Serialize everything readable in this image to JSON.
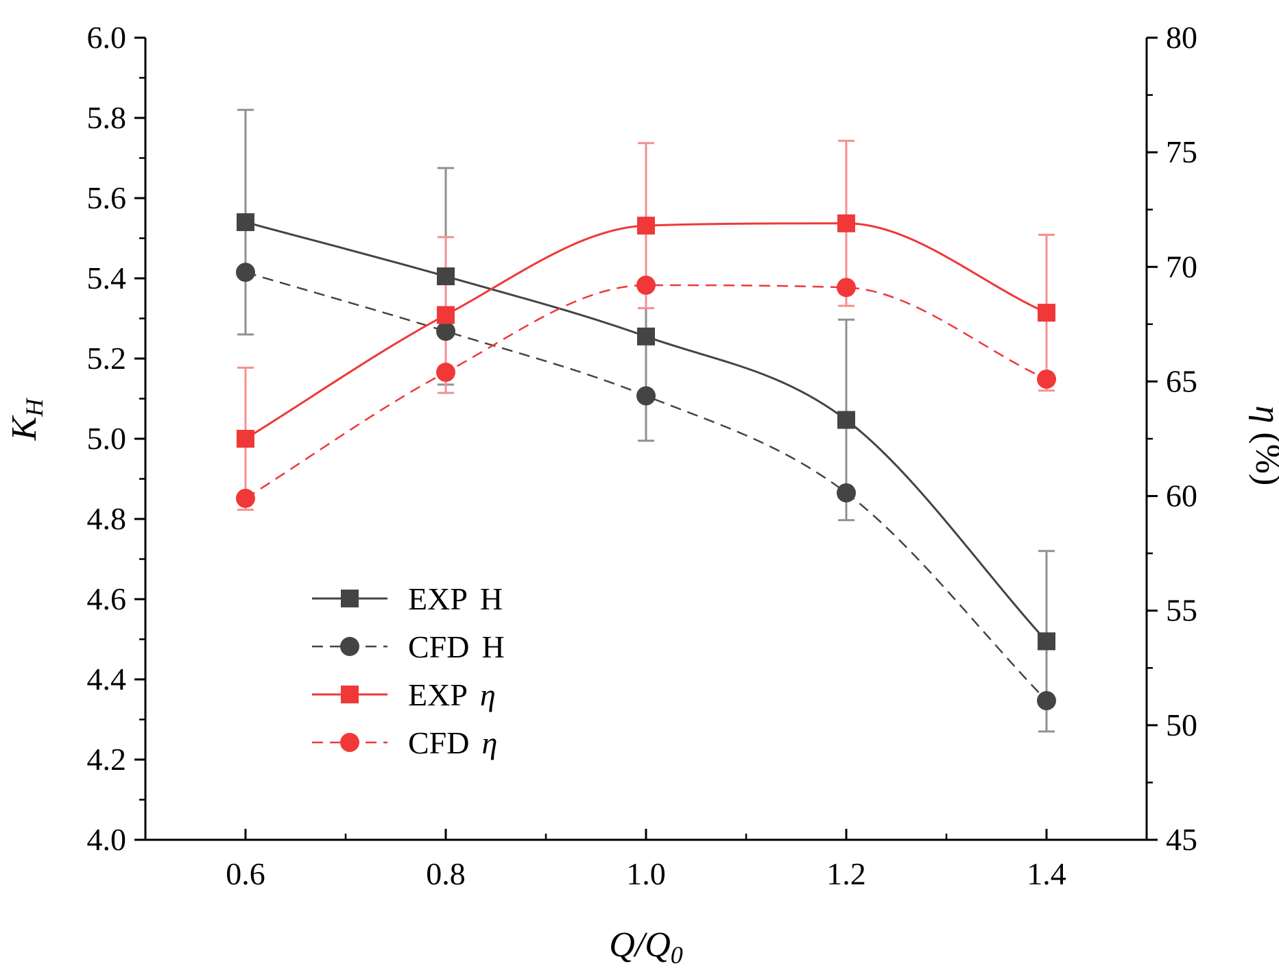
{
  "chart_data": {
    "type": "line",
    "x": [
      0.6,
      0.8,
      1.0,
      1.2,
      1.4
    ],
    "xlim": [
      0.5,
      1.5
    ],
    "x_ticks": [
      "0.6",
      "0.8",
      "1.0",
      "1.2",
      "1.4"
    ],
    "xlabel": {
      "main": "Q/Q",
      "sub": "0"
    },
    "ylim_left": [
      4.0,
      6.0
    ],
    "y_ticks_left": [
      "4.0",
      "4.2",
      "4.4",
      "4.6",
      "4.8",
      "5.0",
      "5.2",
      "5.4",
      "5.6",
      "5.8",
      "6.0"
    ],
    "ylabel_left": {
      "main": "K",
      "sub": "H"
    },
    "ylim_right": [
      45,
      80
    ],
    "y_ticks_right": [
      "45",
      "50",
      "55",
      "60",
      "65",
      "70",
      "75",
      "80"
    ],
    "ylabel_right": {
      "main": "η",
      "rest": " (%)"
    },
    "grid": false,
    "legend_placement": "lower-left",
    "series": [
      {
        "name": "EXP",
        "name_suffix": "H",
        "axis": "left",
        "marker": "square",
        "dash": "solid",
        "color": "#444444",
        "errbar_color": "#909090",
        "values": [
          5.54,
          5.405,
          5.255,
          5.047,
          4.495
        ],
        "errors": [
          0.28,
          0.27,
          0.26,
          0.25,
          0.225
        ]
      },
      {
        "name": "CFD",
        "name_suffix": "H",
        "axis": "left",
        "marker": "circle",
        "dash": "dashed",
        "color": "#444444",
        "values": [
          5.415,
          5.268,
          5.107,
          4.865,
          4.347
        ]
      },
      {
        "name": "EXP",
        "name_suffix": "η",
        "axis": "right",
        "marker": "square",
        "dash": "solid",
        "color": "#f03838",
        "errbar_color": "#f49090",
        "values": [
          62.5,
          67.9,
          71.8,
          71.9,
          68.0
        ],
        "errors": [
          3.1,
          3.4,
          3.6,
          3.6,
          3.4
        ]
      },
      {
        "name": "CFD",
        "name_suffix": "η",
        "axis": "right",
        "marker": "circle",
        "dash": "dashed",
        "color": "#f03838",
        "values": [
          59.9,
          65.4,
          69.2,
          69.1,
          65.1
        ]
      }
    ]
  }
}
